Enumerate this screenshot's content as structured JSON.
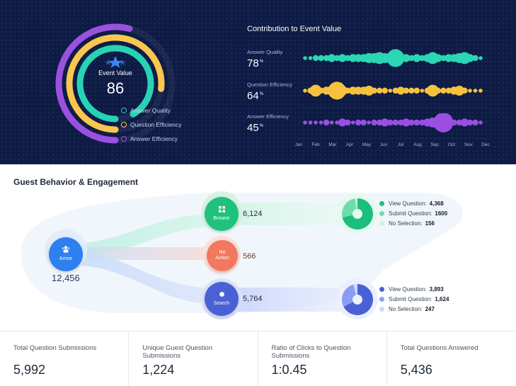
{
  "event_value": {
    "label": "Event Value",
    "value": "86",
    "rings": [
      {
        "name": "Answer Quality",
        "color": "#27d3b5",
        "percent": 78
      },
      {
        "name": "Question Efficiency",
        "color": "#f9c74f",
        "percent": 64
      },
      {
        "name": "Answer Efficiency",
        "color": "#9b51e0",
        "percent": 45
      }
    ]
  },
  "contribution": {
    "title": "Contribution to Event Value",
    "months": [
      "Jan",
      "Feb",
      "Mar",
      "Apr",
      "May",
      "Jun",
      "Jul",
      "Aug",
      "Sep",
      "Oct",
      "Nov",
      "Dec"
    ],
    "rows": [
      {
        "label": "Answer Quality",
        "value": "78",
        "unit": "%",
        "color": "#2bd6b4",
        "dots": [
          2,
          2,
          3,
          3,
          3,
          4,
          3,
          4,
          3,
          4,
          4,
          4,
          5,
          5,
          6,
          5,
          4,
          9,
          4,
          4,
          3,
          4,
          3,
          4,
          6,
          4,
          3,
          4,
          4,
          5,
          6,
          4,
          3,
          2
        ]
      },
      {
        "label": "Question Efficiency",
        "value": "64",
        "unit": "%",
        "color": "#f6c13f",
        "dots": [
          2,
          3,
          6,
          3,
          4,
          5,
          9,
          5,
          3,
          4,
          4,
          4,
          5,
          3,
          3,
          3,
          2,
          3,
          4,
          3,
          3,
          3,
          2,
          3,
          6,
          3,
          3,
          3,
          4,
          5,
          3,
          2,
          2,
          2
        ]
      },
      {
        "label": "Answer Efficiency",
        "value": "45",
        "unit": "%",
        "color": "#9a4fe3",
        "dots": [
          2,
          2,
          2,
          2,
          3,
          2,
          2,
          4,
          3,
          2,
          3,
          3,
          2,
          3,
          3,
          4,
          3,
          3,
          3,
          4,
          3,
          3,
          3,
          4,
          5,
          4,
          10,
          4,
          3,
          3,
          4,
          3,
          3,
          2
        ]
      }
    ]
  },
  "guest_behavior": {
    "title": "Guest Behavior & Engagement",
    "arrive": {
      "label": "Arrive",
      "count": "12,456",
      "color": "#2e7ff0",
      "icon": "people-icon"
    },
    "browse": {
      "label": "Browse",
      "count": "6,124",
      "color": "#1fc27a",
      "icon": "grid-icon"
    },
    "no_action": {
      "label_line1": "No",
      "label_line2": "Action",
      "count": "566",
      "color": "#f2785f"
    },
    "search": {
      "label": "Search",
      "count": "5,764",
      "color": "#4a61d6",
      "icon": "search-icon"
    },
    "browse_breakdown": [
      {
        "label": "View Question:",
        "value": "4,368",
        "amount": 4368,
        "color": "#1bbf7c"
      },
      {
        "label": "Submit Question:",
        "value": "1600",
        "amount": 1600,
        "color": "#6fdcae"
      },
      {
        "label": "No Selection:",
        "value": "156",
        "amount": 156,
        "color": "#c9f3e0"
      }
    ],
    "search_breakdown": [
      {
        "label": "View Question:",
        "value": "3,893",
        "amount": 3893,
        "color": "#4a61d6"
      },
      {
        "label": "Submit Question:",
        "value": "1,624",
        "amount": 1624,
        "color": "#8b9df0"
      },
      {
        "label": "No Selection:",
        "value": "247",
        "amount": 247,
        "color": "#cfd7fb"
      }
    ]
  },
  "stats": [
    {
      "label": "Total Question Submissions",
      "value": "5,992"
    },
    {
      "label": "Unique Guest Question Submissions",
      "value": "1,224"
    },
    {
      "label": "Ratio of Clicks to Question Submissions",
      "value": "1:0.45"
    },
    {
      "label": "Total Questions Answered",
      "value": "5,436"
    }
  ]
}
